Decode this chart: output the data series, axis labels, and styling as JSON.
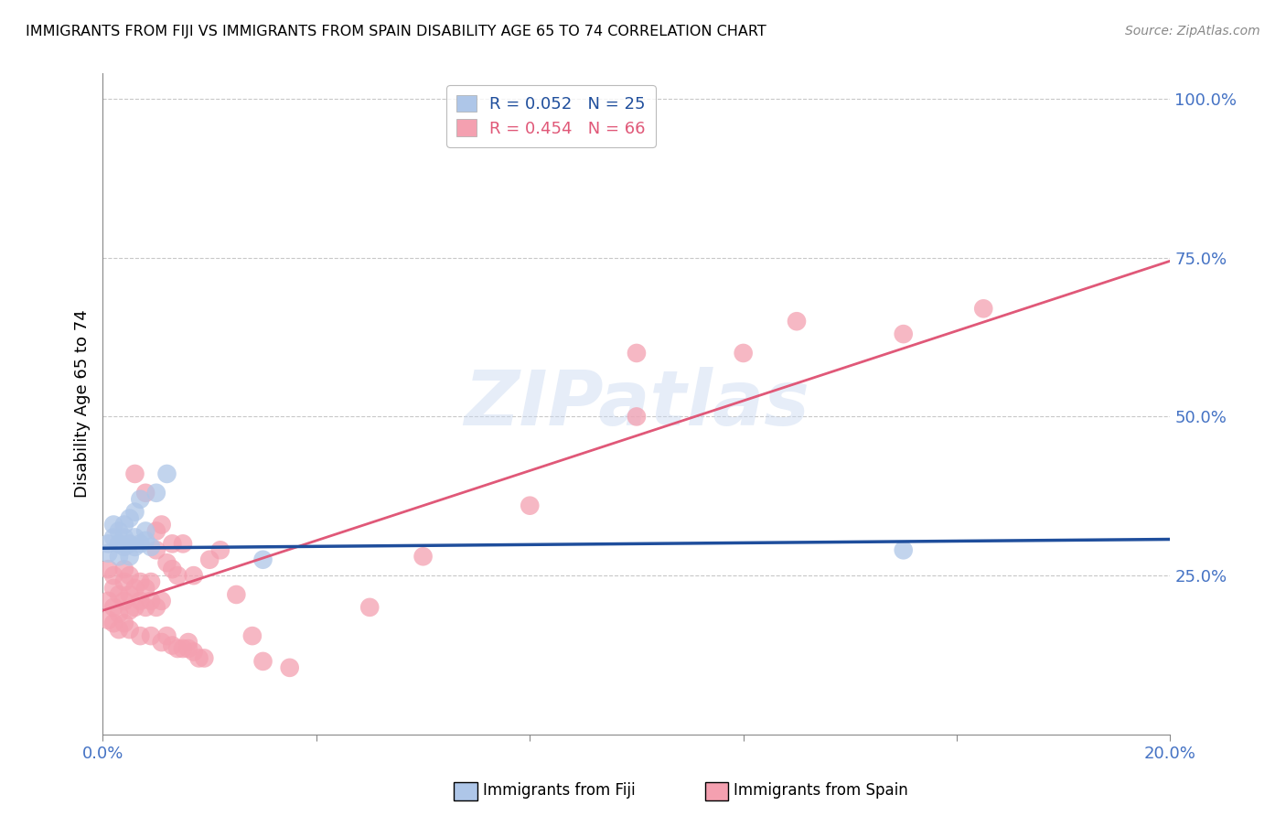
{
  "title": "IMMIGRANTS FROM FIJI VS IMMIGRANTS FROM SPAIN DISABILITY AGE 65 TO 74 CORRELATION CHART",
  "source": "Source: ZipAtlas.com",
  "ylabel": "Disability Age 65 to 74",
  "xlim": [
    0.0,
    0.2
  ],
  "ylim": [
    0.0,
    1.04
  ],
  "fiji_R": 0.052,
  "fiji_N": 25,
  "spain_R": 0.454,
  "spain_N": 66,
  "fiji_color": "#aec6e8",
  "spain_color": "#f4a0b0",
  "fiji_line_color": "#1f4e9c",
  "spain_line_color": "#e05878",
  "watermark_text": "ZIPatlas",
  "fiji_x": [
    0.001,
    0.001,
    0.002,
    0.002,
    0.003,
    0.003,
    0.003,
    0.004,
    0.004,
    0.004,
    0.005,
    0.005,
    0.005,
    0.006,
    0.006,
    0.006,
    0.007,
    0.007,
    0.008,
    0.008,
    0.009,
    0.01,
    0.012,
    0.03,
    0.15
  ],
  "fiji_y": [
    0.285,
    0.3,
    0.31,
    0.33,
    0.28,
    0.3,
    0.32,
    0.295,
    0.31,
    0.33,
    0.28,
    0.3,
    0.34,
    0.295,
    0.31,
    0.35,
    0.3,
    0.37,
    0.305,
    0.32,
    0.295,
    0.38,
    0.41,
    0.275,
    0.29
  ],
  "spain_x": [
    0.001,
    0.001,
    0.001,
    0.002,
    0.002,
    0.002,
    0.002,
    0.003,
    0.003,
    0.003,
    0.004,
    0.004,
    0.004,
    0.004,
    0.005,
    0.005,
    0.005,
    0.005,
    0.006,
    0.006,
    0.006,
    0.007,
    0.007,
    0.007,
    0.008,
    0.008,
    0.008,
    0.009,
    0.009,
    0.009,
    0.01,
    0.01,
    0.01,
    0.011,
    0.011,
    0.011,
    0.012,
    0.012,
    0.013,
    0.013,
    0.013,
    0.014,
    0.014,
    0.015,
    0.015,
    0.016,
    0.016,
    0.017,
    0.017,
    0.018,
    0.019,
    0.02,
    0.022,
    0.025,
    0.028,
    0.03,
    0.035,
    0.05,
    0.06,
    0.08,
    0.1,
    0.13,
    0.15,
    0.165,
    0.1,
    0.12
  ],
  "spain_y": [
    0.21,
    0.26,
    0.18,
    0.2,
    0.23,
    0.175,
    0.25,
    0.19,
    0.22,
    0.165,
    0.21,
    0.24,
    0.175,
    0.26,
    0.195,
    0.22,
    0.165,
    0.25,
    0.2,
    0.23,
    0.41,
    0.21,
    0.24,
    0.155,
    0.2,
    0.23,
    0.38,
    0.21,
    0.24,
    0.155,
    0.2,
    0.29,
    0.32,
    0.21,
    0.145,
    0.33,
    0.155,
    0.27,
    0.14,
    0.26,
    0.3,
    0.135,
    0.25,
    0.135,
    0.3,
    0.145,
    0.135,
    0.13,
    0.25,
    0.12,
    0.12,
    0.275,
    0.29,
    0.22,
    0.155,
    0.115,
    0.105,
    0.2,
    0.28,
    0.36,
    0.6,
    0.65,
    0.63,
    0.67,
    0.5,
    0.6
  ]
}
